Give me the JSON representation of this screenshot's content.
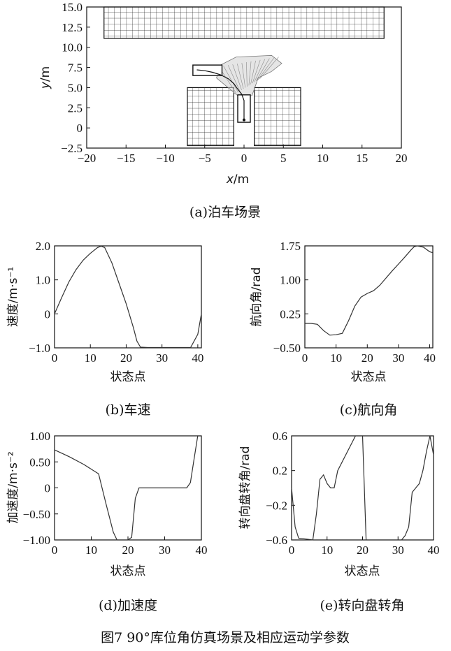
{
  "figure_caption": "图7   90°库位角仿真场景及相应运动学参数",
  "chart_data": [
    {
      "id": "a",
      "type": "scatter",
      "caption": "(a)泊车场景",
      "xlabel": "x/m",
      "ylabel": "y/m",
      "xlim": [
        -20,
        20
      ],
      "ylim": [
        -2.5,
        15
      ],
      "xticks": [
        -20,
        -15,
        -10,
        -5,
        0,
        5,
        10,
        15,
        20
      ],
      "yticks": [
        -2.5,
        0,
        2.5,
        5.0,
        7.5,
        10.0,
        12.5,
        15.0
      ],
      "ytick_labels": [
        "−2.5",
        "0",
        "2.5",
        "5.0",
        "7.5",
        "10.0",
        "12.5",
        "15.0"
      ],
      "xtick_labels": [
        "−20",
        "−15",
        "−10",
        "−5",
        "0",
        "5",
        "10",
        "15",
        "20"
      ],
      "obstacles": [
        {
          "name": "top-block",
          "x": [
            -17.8,
            17.8
          ],
          "y": [
            11.1,
            15.0
          ]
        },
        {
          "name": "left-block",
          "x": [
            -7.2,
            -1.3
          ],
          "y": [
            -2.2,
            5.0
          ]
        },
        {
          "name": "right-block",
          "x": [
            1.3,
            7.2
          ],
          "y": [
            -2.2,
            5.0
          ]
        }
      ],
      "vehicle_start": {
        "x": [
          -6.5,
          -2.8
        ],
        "y": [
          6.5,
          7.8
        ]
      },
      "vehicle_end": {
        "x": [
          -0.8,
          0.8
        ],
        "y": [
          0.7,
          4.1
        ]
      },
      "path": {
        "x": [
          -6.0,
          -5.0,
          -4.0,
          -3.0,
          -2.0,
          -1.3,
          -0.8,
          -0.3,
          0.0,
          0.0,
          0.0
        ],
        "y": [
          7.2,
          7.1,
          6.9,
          6.6,
          6.1,
          5.5,
          4.8,
          4.2,
          3.4,
          2.2,
          1.0
        ]
      },
      "sweep_region": {
        "x": [
          -3.0,
          -1.0,
          1.5,
          3.5,
          4.8,
          3.5,
          1.8,
          1.0,
          -0.8,
          -3.5
        ],
        "y": [
          7.8,
          8.8,
          8.9,
          9.0,
          8.0,
          7.0,
          6.2,
          4.0,
          4.0,
          6.2
        ]
      }
    },
    {
      "id": "b",
      "type": "line",
      "caption": "(b)车速",
      "xlabel": "状态点",
      "ylabel": "速度/m·s⁻¹",
      "xlim": [
        0,
        41
      ],
      "ylim": [
        -1.0,
        2.0
      ],
      "xticks": [
        0,
        10,
        20,
        30,
        40
      ],
      "yticks": [
        -1.0,
        0,
        1.0,
        2.0
      ],
      "ytick_labels": [
        "−1.0",
        "0",
        "1.0",
        "2.0"
      ],
      "series": [
        {
          "x": [
            0,
            2,
            4,
            6,
            8,
            10,
            12,
            13,
            14,
            16,
            18,
            20,
            22,
            23,
            24,
            26,
            30,
            34,
            38,
            40,
            41
          ],
          "y": [
            0,
            0.48,
            0.94,
            1.3,
            1.58,
            1.78,
            1.95,
            1.99,
            1.95,
            1.5,
            0.9,
            0.3,
            -0.4,
            -0.8,
            -0.98,
            -0.99,
            -0.99,
            -0.99,
            -0.99,
            -0.6,
            0.0
          ]
        }
      ]
    },
    {
      "id": "c",
      "type": "line",
      "caption": "(c)航向角",
      "xlabel": "状态点",
      "ylabel": "航向角/rad",
      "xlim": [
        0,
        41
      ],
      "ylim": [
        -0.5,
        1.75
      ],
      "xticks": [
        0,
        10,
        20,
        30,
        40
      ],
      "yticks": [
        -0.5,
        0.25,
        1.0,
        1.75
      ],
      "ytick_labels": [
        "−0.50",
        "0.25",
        "1.00",
        "1.75"
      ],
      "series": [
        {
          "x": [
            0,
            2,
            4,
            6,
            8,
            10,
            12,
            14,
            16,
            18,
            20,
            22,
            24,
            26,
            28,
            30,
            32,
            34,
            35,
            36,
            38,
            40,
            41
          ],
          "y": [
            0.04,
            0.04,
            0.02,
            -0.12,
            -0.22,
            -0.21,
            -0.18,
            0.1,
            0.42,
            0.62,
            0.7,
            0.76,
            0.88,
            1.04,
            1.2,
            1.35,
            1.5,
            1.66,
            1.73,
            1.75,
            1.72,
            1.62,
            1.6
          ]
        }
      ]
    },
    {
      "id": "d",
      "type": "line",
      "caption": "(d)加速度",
      "xlabel": "状态点",
      "ylabel": "加速度/m·s⁻²",
      "xlim": [
        0,
        40
      ],
      "ylim": [
        -1.0,
        1.0
      ],
      "xticks": [
        0,
        10,
        20,
        30,
        40
      ],
      "yticks": [
        -1.0,
        -0.5,
        0,
        0.5,
        1.0
      ],
      "ytick_labels": [
        "−1.00",
        "−0.50",
        "0",
        "0.50",
        "1.00"
      ],
      "series": [
        {
          "x": [
            0,
            4,
            8,
            12,
            14,
            16,
            17,
            20,
            21,
            22,
            23,
            24,
            28,
            32,
            36,
            37,
            38,
            39,
            40
          ],
          "y": [
            0.73,
            0.6,
            0.45,
            0.27,
            -0.3,
            -0.85,
            -1.0,
            -1.0,
            -0.95,
            -0.2,
            0.0,
            0.0,
            0.0,
            0.0,
            0.0,
            0.1,
            0.55,
            1.0,
            1.0
          ]
        }
      ]
    },
    {
      "id": "e",
      "type": "line",
      "caption": "(e)转向盘转角",
      "xlabel": "状态点",
      "ylabel": "转向盘转角/rad",
      "xlim": [
        0,
        40
      ],
      "ylim": [
        -0.6,
        0.6
      ],
      "xticks": [
        0,
        10,
        20,
        30,
        40
      ],
      "yticks": [
        -0.6,
        -0.2,
        0.2,
        0.6
      ],
      "ytick_labels": [
        "−0.6",
        "−0.2",
        "0.2",
        "0.6"
      ],
      "series": [
        {
          "x": [
            0,
            1,
            2,
            6,
            7,
            8,
            9,
            10,
            11,
            12,
            13,
            18,
            19,
            20,
            21,
            22,
            31,
            32,
            33,
            34,
            35,
            36,
            37,
            38,
            39,
            40
          ],
          "y": [
            0.0,
            -0.45,
            -0.58,
            -0.6,
            -0.3,
            0.1,
            0.15,
            0.05,
            0.0,
            0.0,
            0.2,
            0.6,
            0.6,
            0.6,
            -0.6,
            -0.6,
            -0.6,
            -0.55,
            -0.45,
            -0.05,
            0.0,
            0.05,
            0.2,
            0.42,
            0.6,
            0.38
          ]
        }
      ]
    }
  ]
}
